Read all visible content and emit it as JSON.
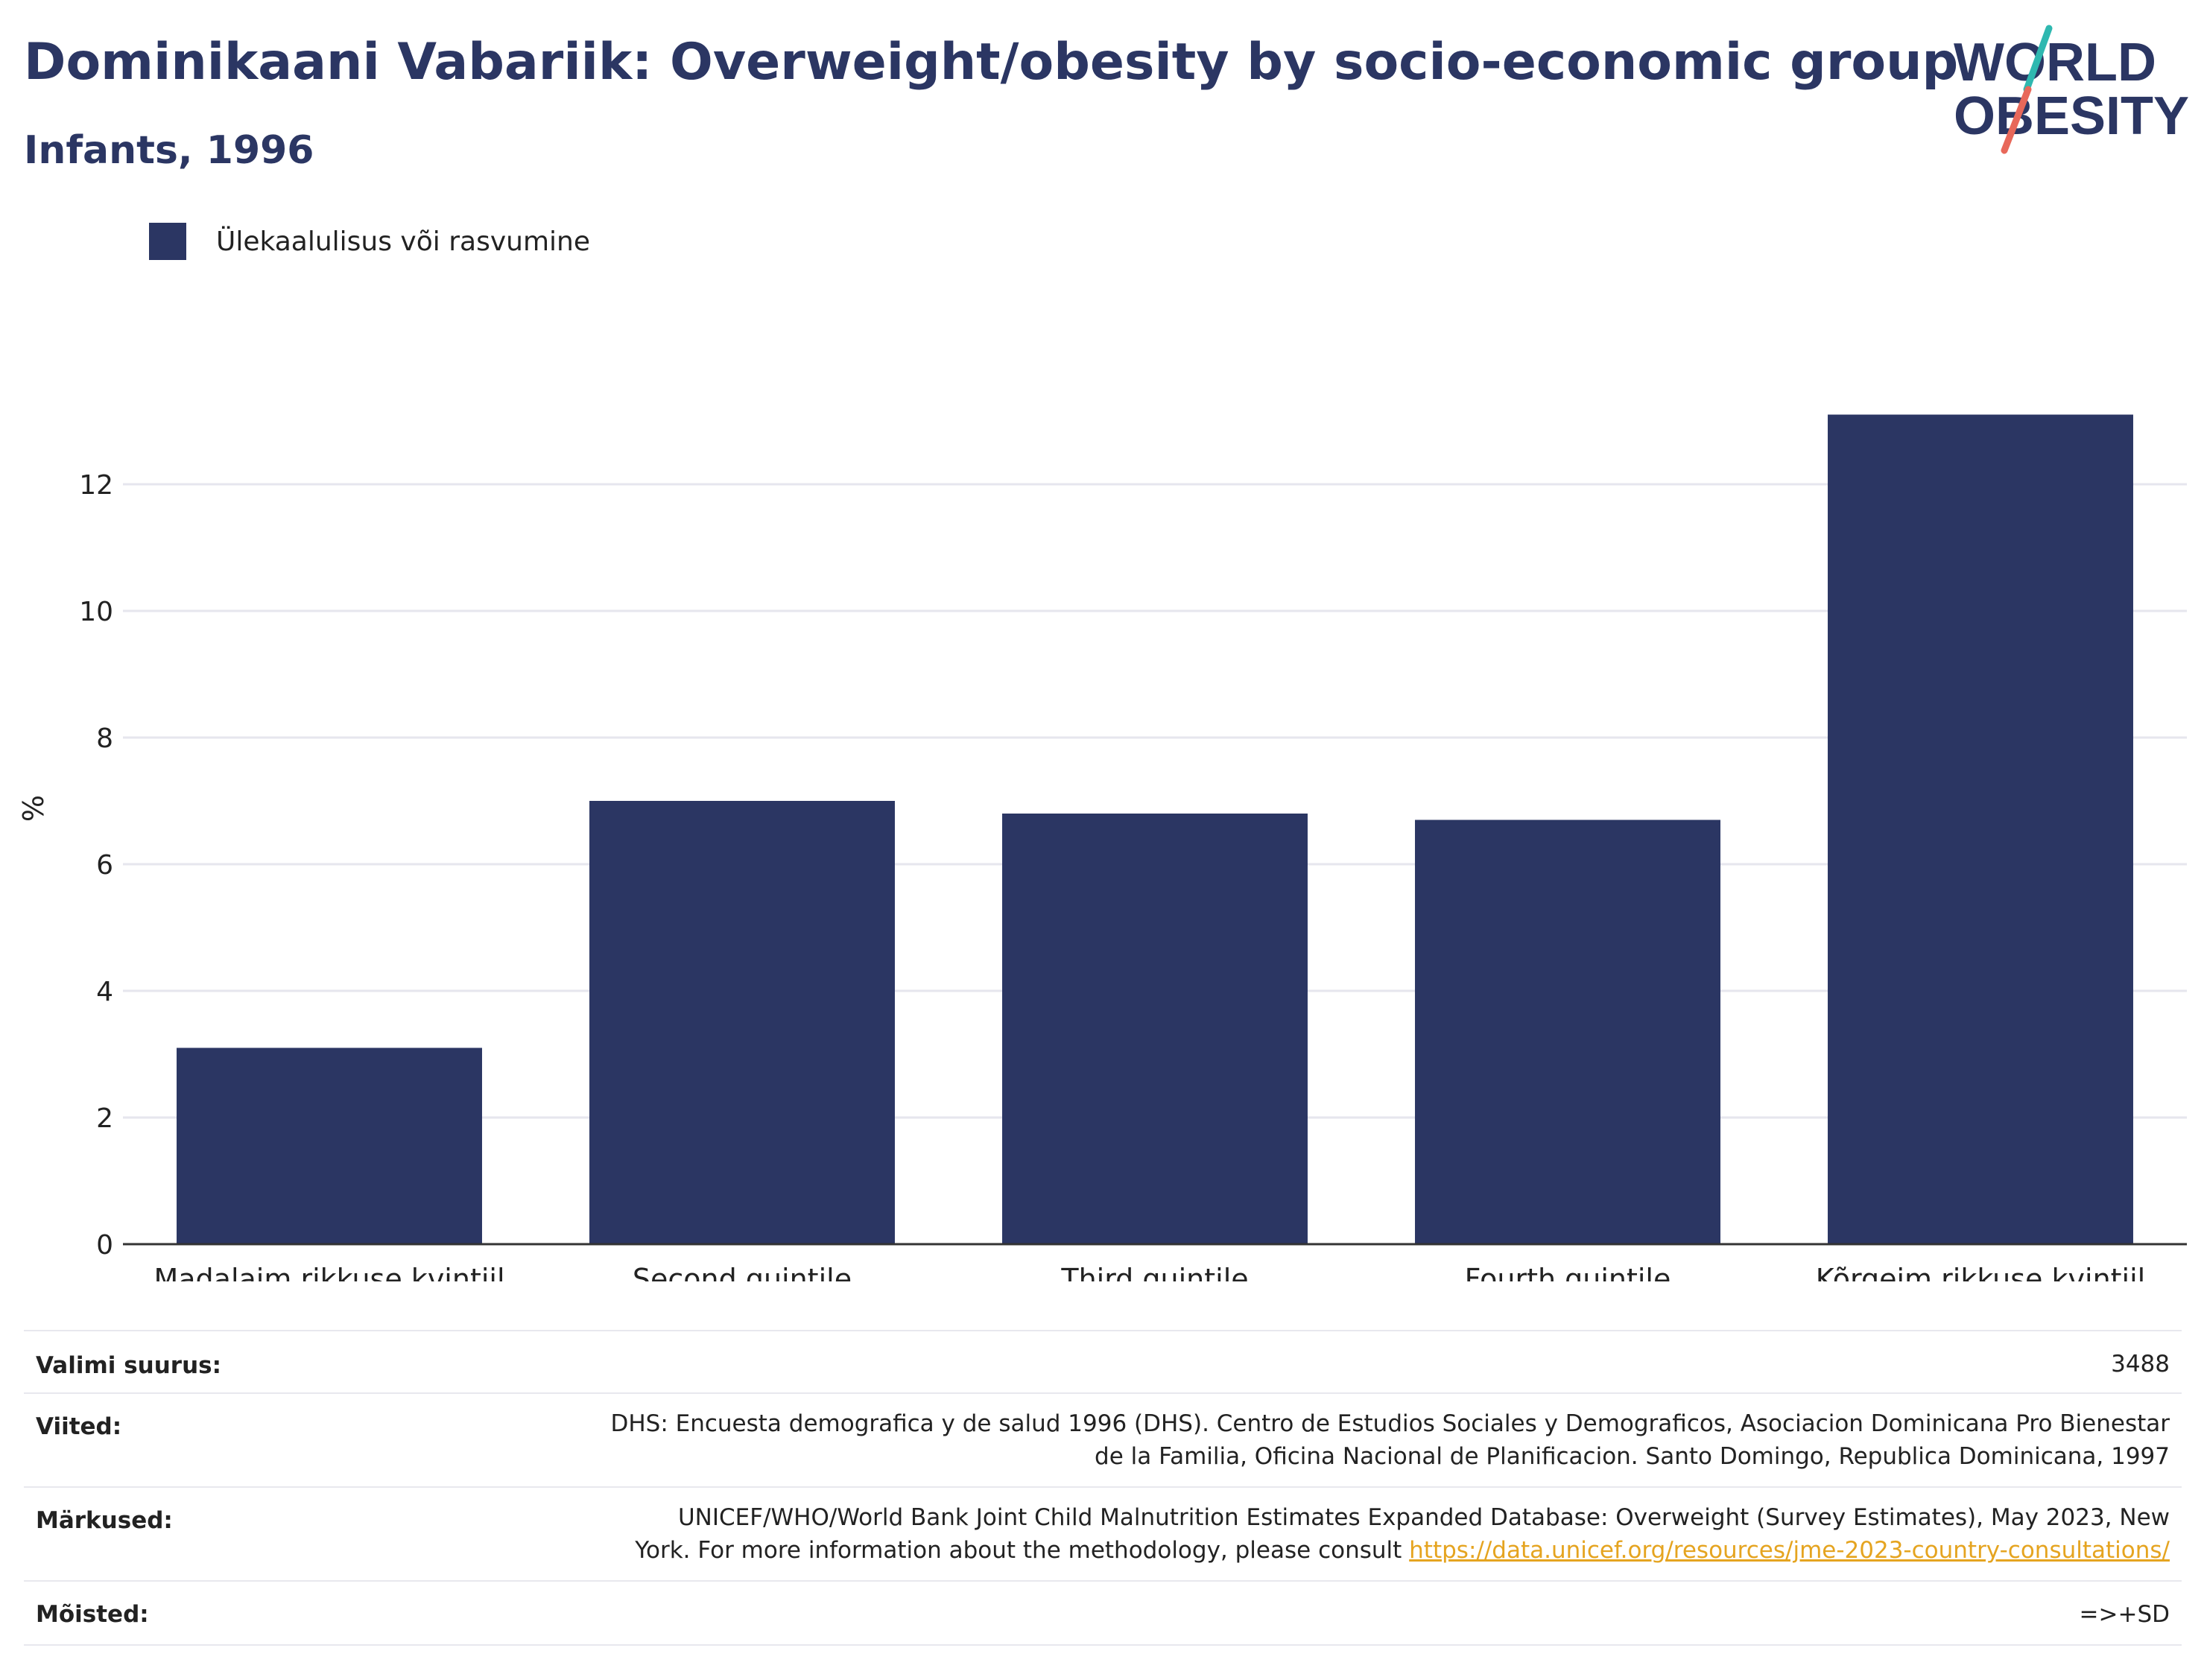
{
  "header": {
    "title": "Dominikaani Vabariik: Overweight/obesity by socio-economic group",
    "subtitle": "Infants, 1996"
  },
  "logo": {
    "line1": "WORLD",
    "line2": "OBESITY",
    "accent_teal": "#2fb8b0",
    "accent_red": "#e8685a"
  },
  "colors": {
    "bar": "#2b3663",
    "grid": "#e6e6ee",
    "axis": "#333333"
  },
  "chart_data": {
    "type": "bar",
    "categories": [
      "Madalaim rikkuse kvintiil",
      "Second quintile",
      "Third quintile",
      "Fourth quintile",
      "Kõrgeim rikkuse kvintiil"
    ],
    "series": [
      {
        "name": "Ülekaalulisus või rasvumine",
        "values": [
          3.1,
          7.0,
          6.8,
          6.7,
          13.1
        ]
      }
    ],
    "ylabel": "%",
    "ylim": [
      0,
      14
    ],
    "yticks": [
      0,
      2,
      4,
      6,
      8,
      10,
      12
    ],
    "grid": true,
    "legend": "top-left"
  },
  "footer": {
    "sample": {
      "label": "Valimi suurus:",
      "value": "3488"
    },
    "refs": {
      "label": "Viited:",
      "line1": "DHS: Encuesta demografica y de salud 1996 (DHS). Centro de Estudios Sociales y Demograficos, Asociacion Dominicana Pro Bienestar",
      "line2": "de la Familia, Oficina Nacional de Planificacion. Santo Domingo, Republica Dominicana, 1997"
    },
    "notes": {
      "label": "Märkused:",
      "line1": "UNICEF/WHO/World Bank Joint Child Malnutrition Estimates Expanded Database: Overweight (Survey Estimates), May 2023, New",
      "line2_prefix": "York. For more information about the methodology, please consult ",
      "link": "https://data.unicef.org/resources/jme-2023-country-consultations/"
    },
    "defs": {
      "label": "Mõisted:",
      "value": "=>+SD"
    }
  }
}
